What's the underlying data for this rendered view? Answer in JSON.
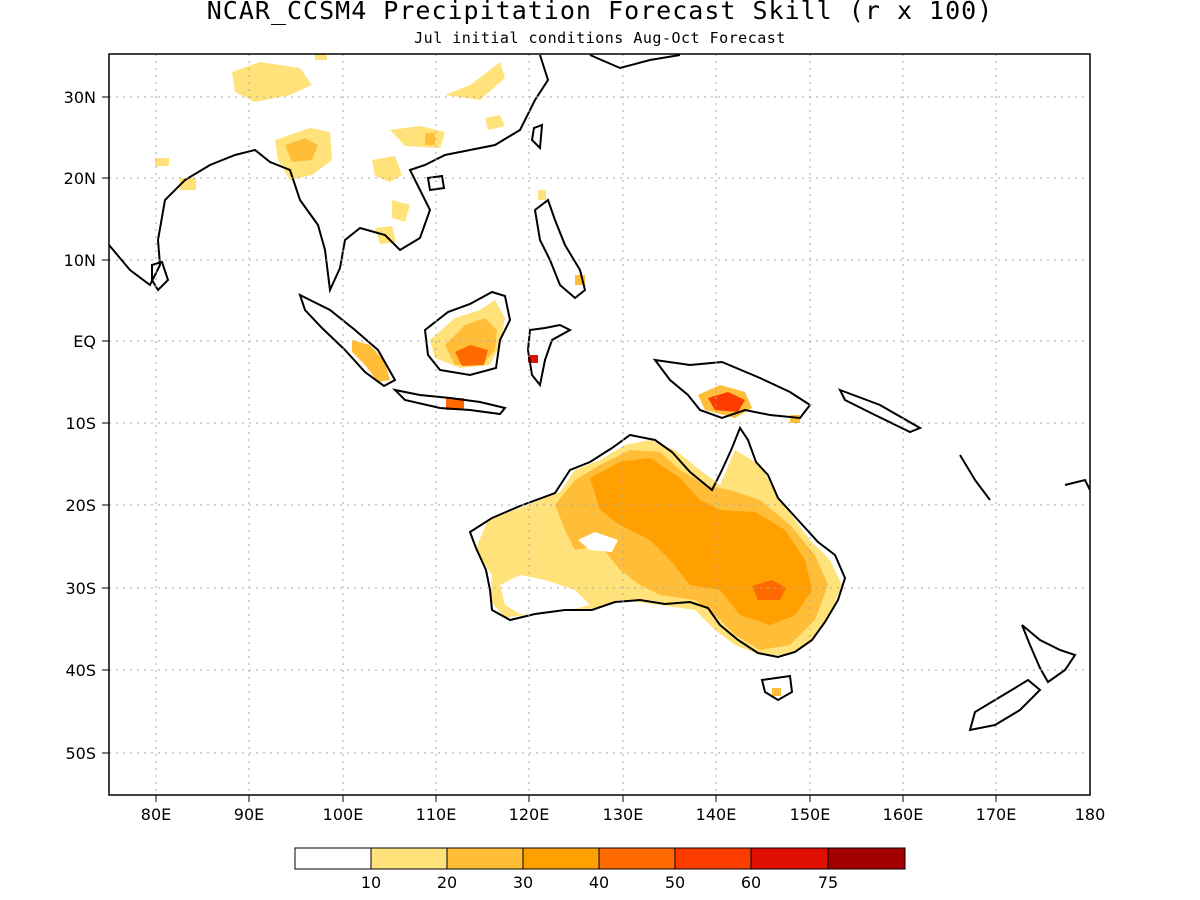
{
  "title": "NCAR_CCSM4 Precipitation Forecast Skill (r x 100)",
  "subtitle": "Jul initial conditions  Aug-Oct Forecast",
  "map": {
    "lon_range": [
      75,
      180
    ],
    "lat_range": [
      -55,
      35
    ],
    "x_ticks": [
      "80E",
      "90E",
      "100E",
      "110E",
      "120E",
      "130E",
      "140E",
      "150E",
      "160E",
      "170E",
      "180"
    ],
    "y_ticks": [
      "30N",
      "20N",
      "10N",
      "EQ",
      "10S",
      "20S",
      "30S",
      "40S",
      "50S"
    ],
    "grid": "dotted"
  },
  "colorbar": {
    "labels": [
      "10",
      "20",
      "30",
      "40",
      "50",
      "60",
      "75"
    ],
    "colors": [
      "#ffffff",
      "#ffe37a",
      "#ffbd38",
      "#ff9f00",
      "#ff6a00",
      "#ff3c00",
      "#e01000",
      "#a50000"
    ]
  }
}
